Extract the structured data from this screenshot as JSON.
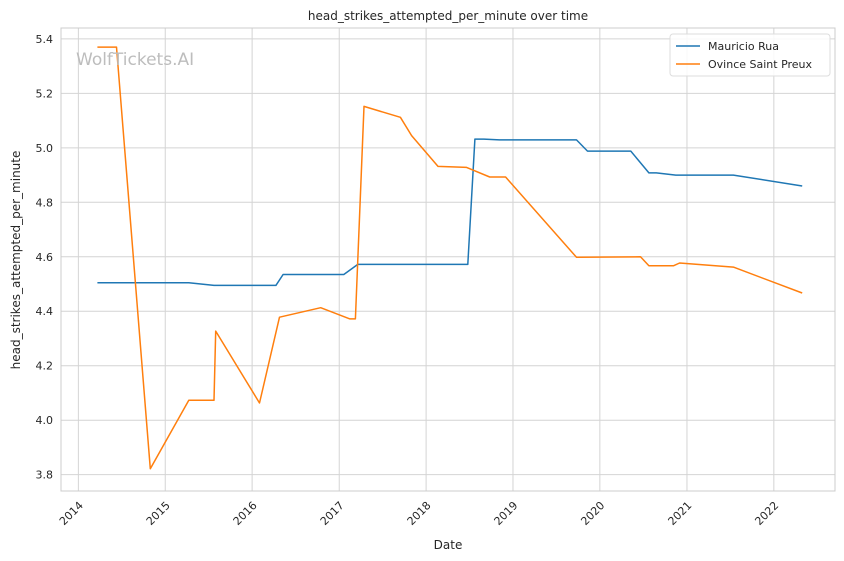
{
  "watermark": "WolfTickets.AI",
  "chart_data": {
    "type": "line",
    "title": "head_strikes_attempted_per_minute over time",
    "xlabel": "Date",
    "ylabel": "head_strikes_attempted_per_minute",
    "xlim": [
      "2013-10-20",
      "2022-09-15"
    ],
    "ylim": [
      3.74,
      5.44
    ],
    "x_ticks": [
      "2014-01-01",
      "2015-01-01",
      "2016-01-01",
      "2017-01-01",
      "2018-01-01",
      "2019-01-01",
      "2020-01-01",
      "2021-01-01",
      "2022-01-01"
    ],
    "x_tick_labels": [
      "2014",
      "2015",
      "2016",
      "2017",
      "2018",
      "2019",
      "2020",
      "2021",
      "2022"
    ],
    "y_ticks": [
      3.8,
      4.0,
      4.2,
      4.4,
      4.6,
      4.8,
      5.0,
      5.2,
      5.4
    ],
    "y_tick_labels": [
      "3.8",
      "4.0",
      "4.2",
      "4.4",
      "4.6",
      "4.8",
      "5.0",
      "5.2",
      "5.4"
    ],
    "grid": true,
    "legend_position": "top-right",
    "series": [
      {
        "name": "Mauricio Rua",
        "color": "#1f77b4",
        "points": [
          [
            "2014-03-22",
            4.505
          ],
          [
            "2015-04-10",
            4.505
          ],
          [
            "2015-07-25",
            4.495
          ],
          [
            "2016-04-10",
            4.495
          ],
          [
            "2016-05-10",
            4.535
          ],
          [
            "2017-01-20",
            4.535
          ],
          [
            "2017-03-20",
            4.572
          ],
          [
            "2018-06-25",
            4.572
          ],
          [
            "2018-07-25",
            5.032
          ],
          [
            "2018-09-01",
            5.032
          ],
          [
            "2018-11-05",
            5.029
          ],
          [
            "2019-09-25",
            5.029
          ],
          [
            "2019-11-10",
            4.988
          ],
          [
            "2020-05-10",
            4.988
          ],
          [
            "2020-07-25",
            4.908
          ],
          [
            "2020-08-25",
            4.908
          ],
          [
            "2020-11-15",
            4.9
          ],
          [
            "2021-07-15",
            4.9
          ],
          [
            "2022-04-30",
            4.86
          ]
        ]
      },
      {
        "name": "Ovince Saint Preux",
        "color": "#ff7f0e",
        "points": [
          [
            "2014-03-22",
            5.37
          ],
          [
            "2014-06-10",
            5.37
          ],
          [
            "2014-10-30",
            3.822
          ],
          [
            "2015-04-10",
            4.073
          ],
          [
            "2015-07-25",
            4.073
          ],
          [
            "2015-08-01",
            4.327
          ],
          [
            "2016-02-01",
            4.063
          ],
          [
            "2016-04-25",
            4.378
          ],
          [
            "2016-10-15",
            4.413
          ],
          [
            "2017-02-15",
            4.372
          ],
          [
            "2017-03-10",
            4.372
          ],
          [
            "2017-04-15",
            5.152
          ],
          [
            "2017-09-15",
            5.112
          ],
          [
            "2017-11-01",
            5.045
          ],
          [
            "2018-02-20",
            4.932
          ],
          [
            "2018-06-20",
            4.928
          ],
          [
            "2018-09-25",
            4.893
          ],
          [
            "2018-12-01",
            4.893
          ],
          [
            "2019-09-25",
            4.598
          ],
          [
            "2020-06-20",
            4.6
          ],
          [
            "2020-07-25",
            4.567
          ],
          [
            "2020-11-05",
            4.567
          ],
          [
            "2020-12-01",
            4.577
          ],
          [
            "2021-07-15",
            4.562
          ],
          [
            "2022-04-30",
            4.467
          ]
        ]
      }
    ]
  }
}
